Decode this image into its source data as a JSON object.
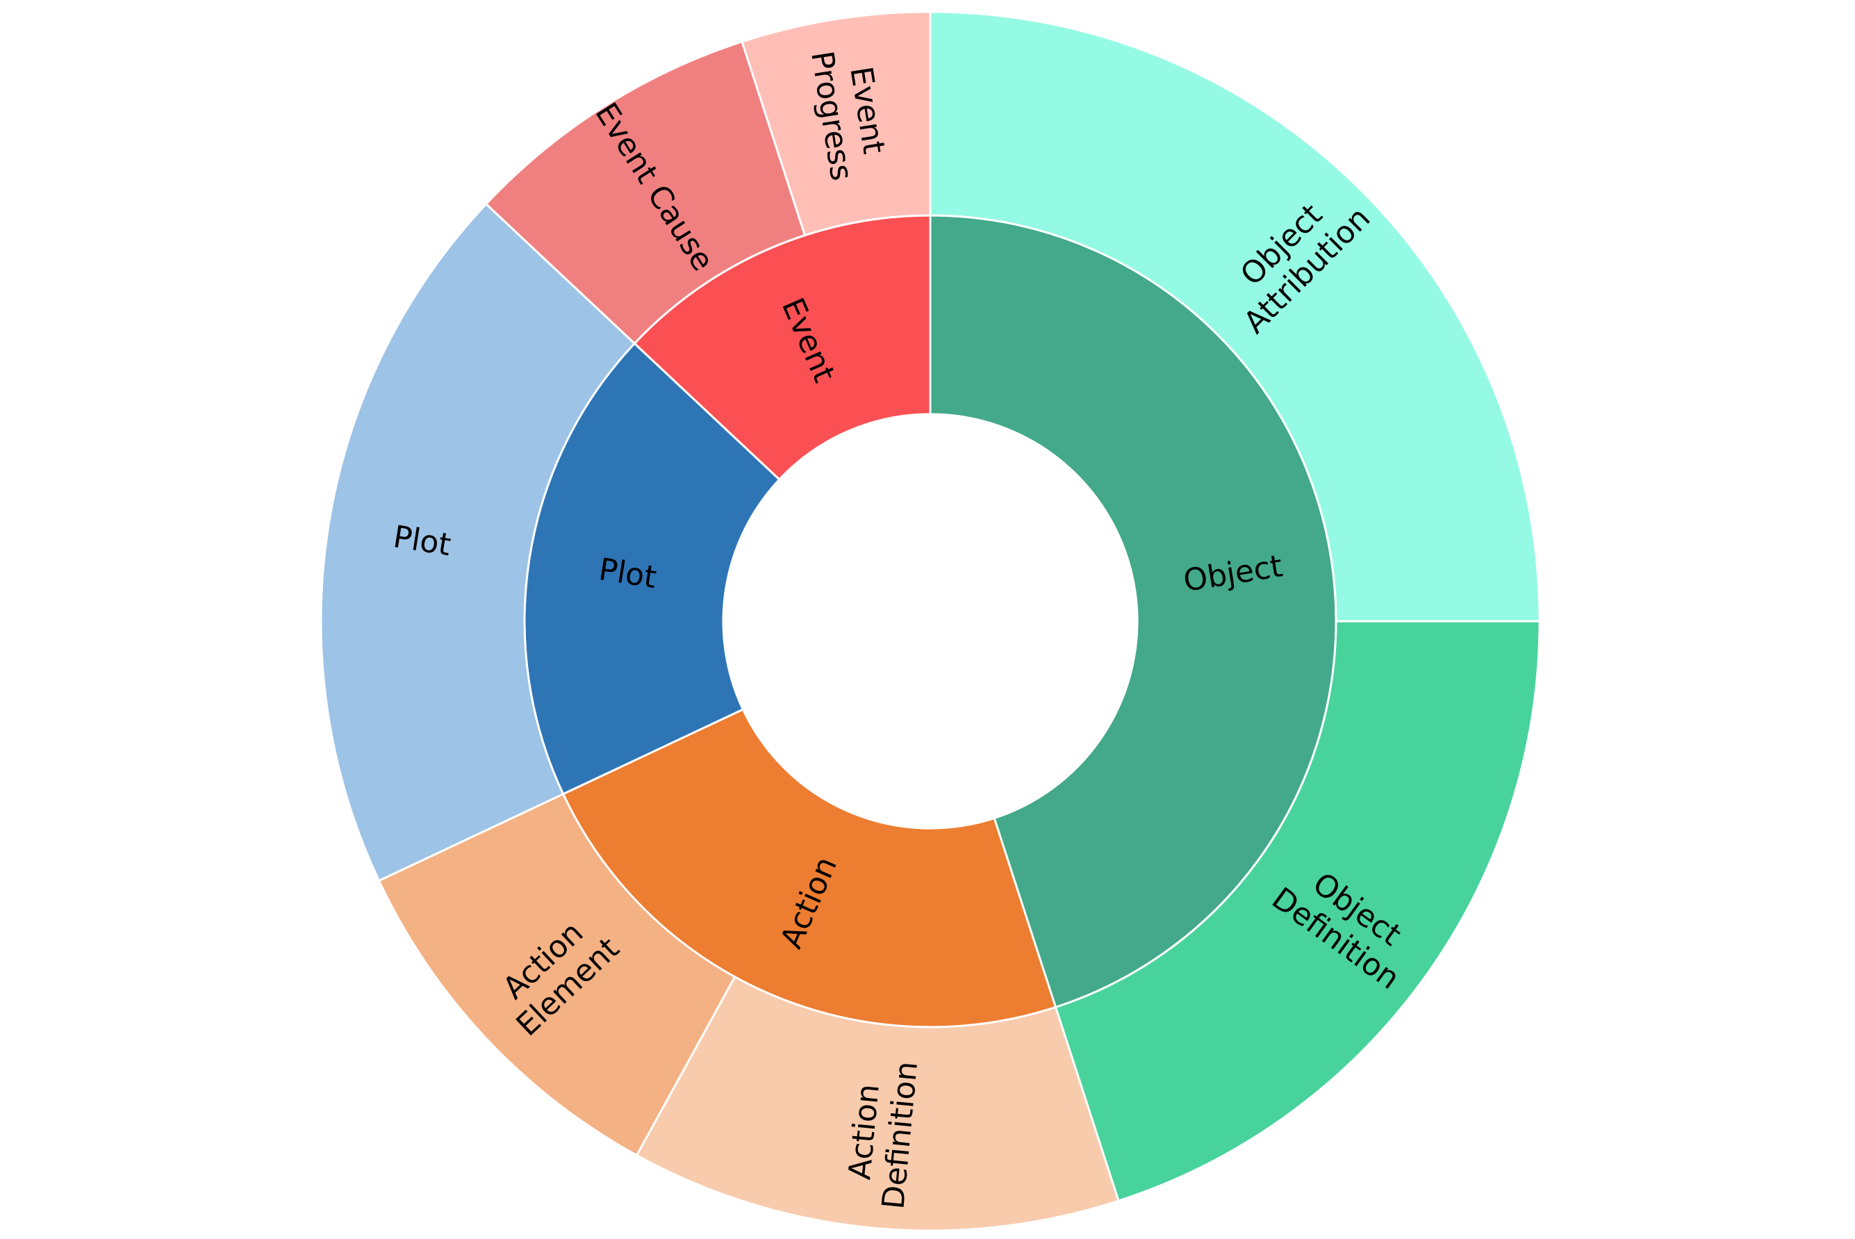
{
  "chart_data": {
    "type": "sunburst",
    "title": "",
    "children": [
      {
        "name": "Object",
        "color": "#43A98A",
        "children": [
          {
            "name": "Object Attribution",
            "value": 25,
            "color": "#95FAE3"
          },
          {
            "name": "Object Definition",
            "value": 20,
            "color": "#48D39C"
          }
        ]
      },
      {
        "name": "Action",
        "color": "#ED7D31",
        "children": [
          {
            "name": "Action Definition",
            "value": 13,
            "color": "#F8CBAD"
          },
          {
            "name": "Action Element",
            "value": 10,
            "color": "#F4B183"
          }
        ]
      },
      {
        "name": "Plot",
        "color": "#2E75B6",
        "children": [
          {
            "name": "Plot",
            "value": 19,
            "color": "#9DC3E6"
          }
        ]
      },
      {
        "name": "Event",
        "color": "#FA5053",
        "children": [
          {
            "name": "Event Cause",
            "value": 8,
            "color": "#F08080"
          },
          {
            "name": "Event Progress",
            "value": 5,
            "color": "#FFBFB7"
          }
        ]
      }
    ]
  }
}
